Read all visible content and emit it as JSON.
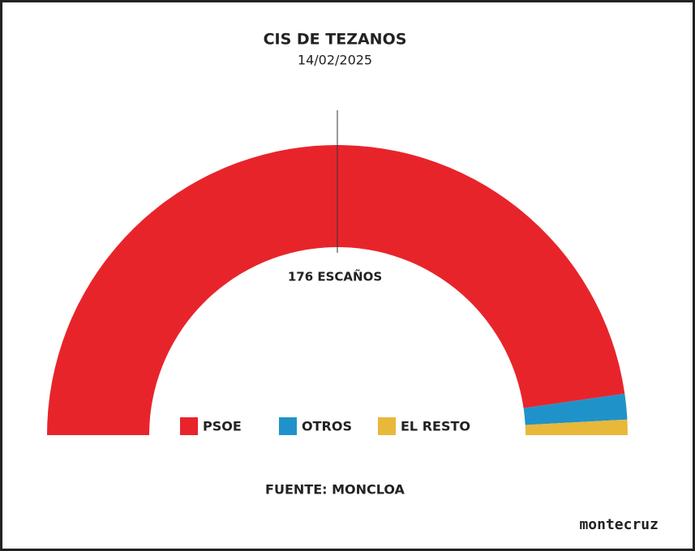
{
  "chart_data": {
    "type": "half-donut",
    "title": "CIS DE TEZANOS",
    "subtitle": "14/02/2025",
    "categories": [
      "PSOE",
      "OTROS",
      "EL RESTO"
    ],
    "values": [
      334,
      10,
      6
    ],
    "colors": [
      "#e8242b",
      "#1f93c9",
      "#e8b83a"
    ],
    "annotation": "176 ESCAÑOS",
    "source": "FUENTE: MONCLOA",
    "brand": "montecruz"
  }
}
